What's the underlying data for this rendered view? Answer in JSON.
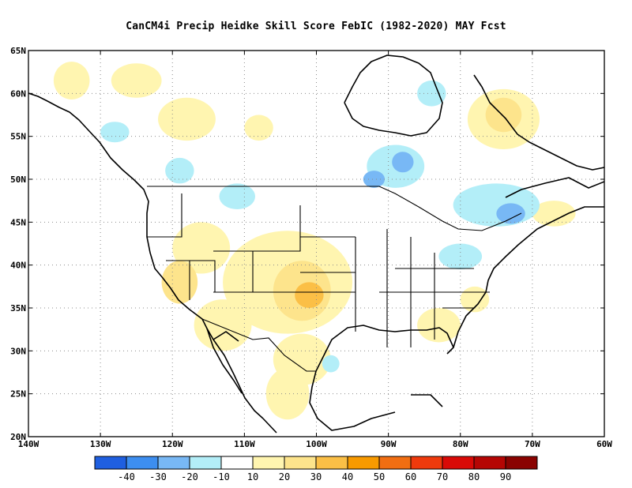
{
  "title": "CanCM4i Precip Heidke Skill Score FebIC (1982-2020) MAY Fcst",
  "map": {
    "lon_range": [
      -140,
      -60
    ],
    "lat_range": [
      20,
      65
    ],
    "lat_ticks": [
      {
        "value": 65,
        "label": "65N"
      },
      {
        "value": 60,
        "label": "60N"
      },
      {
        "value": 55,
        "label": "55N"
      },
      {
        "value": 50,
        "label": "50N"
      },
      {
        "value": 45,
        "label": "45N"
      },
      {
        "value": 40,
        "label": "40N"
      },
      {
        "value": 35,
        "label": "35N"
      },
      {
        "value": 30,
        "label": "30N"
      },
      {
        "value": 25,
        "label": "25N"
      },
      {
        "value": 20,
        "label": "20N"
      }
    ],
    "lon_ticks": [
      {
        "value": -140,
        "label": "140W"
      },
      {
        "value": -130,
        "label": "130W"
      },
      {
        "value": -120,
        "label": "120W"
      },
      {
        "value": -110,
        "label": "110W"
      },
      {
        "value": -100,
        "label": "100W"
      },
      {
        "value": -90,
        "label": "90W"
      },
      {
        "value": -80,
        "label": "80W"
      },
      {
        "value": -70,
        "label": "70W"
      },
      {
        "value": -60,
        "label": "60W"
      }
    ],
    "grid": true,
    "regions": [
      {
        "lon": -134,
        "lat": 61.5,
        "rx": 2.5,
        "ry": 2.2,
        "level": 1
      },
      {
        "lon": -125,
        "lat": 61.5,
        "rx": 3.5,
        "ry": 2.0,
        "level": 1
      },
      {
        "lon": -118,
        "lat": 57,
        "rx": 4,
        "ry": 2.5,
        "level": 1
      },
      {
        "lon": -108,
        "lat": 56,
        "rx": 2,
        "ry": 1.5,
        "level": 1
      },
      {
        "lon": -74,
        "lat": 57,
        "rx": 5,
        "ry": 3.5,
        "level": 1
      },
      {
        "lon": -74,
        "lat": 57.5,
        "rx": 2.5,
        "ry": 2.0,
        "level": 2
      },
      {
        "lon": -116,
        "lat": 42,
        "rx": 4,
        "ry": 3,
        "level": 1
      },
      {
        "lon": -104,
        "lat": 38,
        "rx": 9,
        "ry": 6,
        "level": 1
      },
      {
        "lon": -102,
        "lat": 37,
        "rx": 4,
        "ry": 3.5,
        "level": 2
      },
      {
        "lon": -101,
        "lat": 36.5,
        "rx": 2,
        "ry": 1.5,
        "level": 3
      },
      {
        "lon": -113,
        "lat": 33,
        "rx": 4,
        "ry": 3,
        "level": 1
      },
      {
        "lon": -119,
        "lat": 38,
        "rx": 2.5,
        "ry": 2.5,
        "level": 2
      },
      {
        "lon": -102,
        "lat": 29,
        "rx": 4,
        "ry": 3,
        "level": 1
      },
      {
        "lon": -104,
        "lat": 25,
        "rx": 3,
        "ry": 3,
        "level": 1
      },
      {
        "lon": -83,
        "lat": 33,
        "rx": 3,
        "ry": 2,
        "level": 1
      },
      {
        "lon": -78,
        "lat": 36,
        "rx": 2,
        "ry": 1.5,
        "level": 1
      },
      {
        "lon": -67,
        "lat": 46,
        "rx": 3,
        "ry": 1.5,
        "level": 1
      },
      {
        "lon": -89,
        "lat": 51.5,
        "rx": 4,
        "ry": 2.5,
        "level": -1
      },
      {
        "lon": -88,
        "lat": 52,
        "rx": 1.5,
        "ry": 1.2,
        "level": -2
      },
      {
        "lon": -92,
        "lat": 50,
        "rx": 1.5,
        "ry": 1.0,
        "level": -2
      },
      {
        "lon": -75,
        "lat": 47,
        "rx": 6,
        "ry": 2.5,
        "level": -1
      },
      {
        "lon": -73,
        "lat": 46,
        "rx": 2,
        "ry": 1.2,
        "level": -2
      },
      {
        "lon": -80,
        "lat": 41,
        "rx": 3,
        "ry": 1.5,
        "level": -1
      },
      {
        "lon": -119,
        "lat": 51,
        "rx": 2,
        "ry": 1.5,
        "level": -1
      },
      {
        "lon": -128,
        "lat": 55.5,
        "rx": 2,
        "ry": 1.2,
        "level": -1
      },
      {
        "lon": -111,
        "lat": 48,
        "rx": 2.5,
        "ry": 1.5,
        "level": -1
      },
      {
        "lon": -98,
        "lat": 28.5,
        "rx": 1.2,
        "ry": 1.0,
        "level": -1
      },
      {
        "lon": -84,
        "lat": 60,
        "rx": 2,
        "ry": 1.5,
        "level": -1
      }
    ]
  },
  "colorbar": {
    "colors": [
      "#1f5fe0",
      "#3d8ef0",
      "#78b8f5",
      "#b3eef8",
      "#ffffff",
      "#fff5b0",
      "#fde48c",
      "#fbbf46",
      "#f89a00",
      "#f16e12",
      "#ef3a0d",
      "#d90a07",
      "#b50604",
      "#8a0301"
    ],
    "labels": [
      "-40",
      "-30",
      "-20",
      "-10",
      "10",
      "20",
      "30",
      "40",
      "50",
      "60",
      "70",
      "80",
      "90"
    ]
  }
}
